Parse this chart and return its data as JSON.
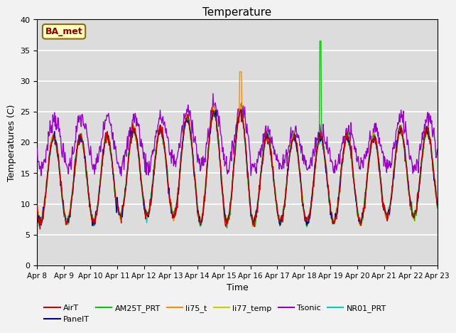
{
  "title": "Temperature",
  "xlabel": "Time",
  "ylabel": "Temperatures (C)",
  "ylim": [
    0,
    40
  ],
  "x_tick_labels": [
    "Apr 8",
    "Apr 9",
    "Apr 10",
    "Apr 11",
    "Apr 12",
    "Apr 13",
    "Apr 14",
    "Apr 15",
    "Apr 16",
    "Apr 17",
    "Apr 18",
    "Apr 19",
    "Apr 20",
    "Apr 21",
    "Apr 22",
    "Apr 23"
  ],
  "annotation_text": "BA_met",
  "annotation_color": "#8B0000",
  "annotation_bg": "#FFFFC0",
  "bg_color": "#DCDCDC",
  "legend_entries": [
    "AirT",
    "PanelT",
    "AM25T_PRT",
    "li75_t",
    "li77_temp",
    "Tsonic",
    "NR01_PRT"
  ],
  "line_colors": {
    "AirT": "#CC0000",
    "PanelT": "#000099",
    "AM25T_PRT": "#00CC00",
    "li75_t": "#FF8C00",
    "li77_temp": "#CCCC00",
    "Tsonic": "#9900CC",
    "NR01_PRT": "#00CCCC"
  },
  "yticks": [
    0,
    5,
    10,
    15,
    20,
    25,
    30,
    35,
    40
  ],
  "figsize": [
    6.4,
    4.8
  ],
  "dpi": 100
}
